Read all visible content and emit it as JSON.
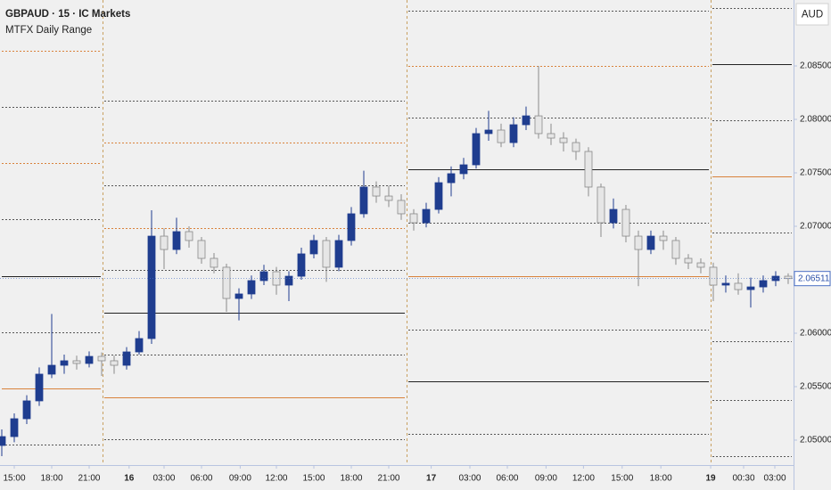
{
  "chart_data": {
    "type": "candlestick",
    "title": "GBPAUD · 15 · IC Markets",
    "subtitle": "MTFX Daily Range",
    "currency": "AUD",
    "xlim": [
      -1.143,
      62.43
    ],
    "ylim": [
      2.047667,
      2.091167
    ],
    "yticks": [
      {
        "value": 2.085,
        "label": "2.08500"
      },
      {
        "value": 2.08,
        "label": "2.08000"
      },
      {
        "value": 2.075,
        "label": "2.07500"
      },
      {
        "value": 2.07,
        "label": "2.07000"
      },
      {
        "value": 2.06,
        "label": "2.06000"
      },
      {
        "value": 2.055,
        "label": "2.05500"
      },
      {
        "value": 2.05,
        "label": "2.05000"
      }
    ],
    "xticks": [
      {
        "value": 0,
        "label": "15:00"
      },
      {
        "value": 3,
        "label": "18:00"
      },
      {
        "value": 6,
        "label": "21:00"
      },
      {
        "value": 9.2,
        "label": "16"
      },
      {
        "value": 12,
        "label": "03:00"
      },
      {
        "value": 15,
        "label": "06:00"
      },
      {
        "value": 18.1,
        "label": "09:00"
      },
      {
        "value": 21,
        "label": "12:00"
      },
      {
        "value": 24,
        "label": "15:00"
      },
      {
        "value": 27,
        "label": "18:00"
      },
      {
        "value": 30,
        "label": "21:00"
      },
      {
        "value": 33.4,
        "label": "17"
      },
      {
        "value": 36.5,
        "label": "03:00"
      },
      {
        "value": 39.5,
        "label": "06:00"
      },
      {
        "value": 42.6,
        "label": "09:00"
      },
      {
        "value": 45.6,
        "label": "12:00"
      },
      {
        "value": 48.7,
        "label": "15:00"
      },
      {
        "value": 51.8,
        "label": "18:00"
      },
      {
        "value": 55.79,
        "label": "19"
      },
      {
        "value": 58.43,
        "label": "00:30"
      },
      {
        "value": 60.93,
        "label": "03:00"
      }
    ],
    "bold_xticks": [
      "16",
      "17",
      "19"
    ],
    "separators": [
      7.07,
      31.43,
      55.79
    ],
    "up_color": "#1f3d8f",
    "down_color": "#e6e6e6",
    "x": [
      -1,
      0,
      1,
      2,
      3,
      4,
      5,
      6,
      7,
      8,
      9,
      10,
      11,
      12,
      13,
      14,
      15,
      16,
      17,
      18,
      19,
      20,
      21,
      22,
      23,
      24,
      25,
      26,
      27,
      28,
      29,
      30,
      31,
      32,
      33,
      34,
      35,
      36,
      37,
      38,
      39,
      40,
      41,
      42,
      43,
      44,
      45,
      46,
      47,
      48,
      49,
      50,
      51,
      52,
      53,
      54,
      55,
      56,
      57,
      58,
      59,
      60,
      61,
      62
    ],
    "open": [
      2.0495,
      2.05033,
      2.052,
      2.05367,
      2.05617,
      2.057,
      2.05742,
      2.05717,
      2.05783,
      2.05742,
      2.057,
      2.05825,
      2.0595,
      2.06908,
      2.06783,
      2.0695,
      2.06867,
      2.067,
      2.06617,
      2.06325,
      2.06367,
      2.06492,
      2.06575,
      2.0645,
      2.06533,
      2.06742,
      2.06867,
      2.06617,
      2.06867,
      2.07117,
      2.07367,
      2.07283,
      2.07242,
      2.07117,
      2.07033,
      2.07158,
      2.07408,
      2.07492,
      2.07575,
      2.07867,
      2.079,
      2.07783,
      2.0795,
      2.08033,
      2.07867,
      2.07825,
      2.07783,
      2.077,
      2.07367,
      2.07033,
      2.07158,
      2.06908,
      2.06783,
      2.06908,
      2.06867,
      2.067,
      2.06658,
      2.06617,
      2.0645,
      2.06467,
      2.06408,
      2.06433,
      2.06492,
      2.06533
    ],
    "high": [
      2.051,
      2.0525,
      2.0542,
      2.0568,
      2.0618,
      2.058,
      2.0579,
      2.0583,
      2.0582,
      2.0579,
      2.0587,
      2.0602,
      2.0715,
      2.0698,
      2.0708,
      2.07,
      2.069,
      2.0675,
      2.0665,
      2.0642,
      2.0654,
      2.0664,
      2.0662,
      2.0658,
      2.068,
      2.0692,
      2.069,
      2.0692,
      2.0718,
      2.0752,
      2.0742,
      2.0738,
      2.073,
      2.0716,
      2.0722,
      2.0746,
      2.0756,
      2.0764,
      2.0792,
      2.0808,
      2.0796,
      2.0802,
      2.0812,
      2.085,
      2.0796,
      2.0788,
      2.0782,
      2.0774,
      2.074,
      2.0726,
      2.072,
      2.0696,
      2.0696,
      2.0696,
      2.069,
      2.0674,
      2.067,
      2.0666,
      2.0654,
      2.0656,
      2.0652,
      2.0654,
      2.0658,
      2.0656
    ],
    "low": [
      2.0485,
      2.0498,
      2.0515,
      2.0532,
      2.0558,
      2.0562,
      2.0566,
      2.0568,
      2.056,
      2.0562,
      2.0566,
      2.058,
      2.059,
      2.066,
      2.0674,
      2.068,
      2.0665,
      2.0656,
      2.062,
      2.0612,
      2.0632,
      2.0645,
      2.0636,
      2.063,
      2.065,
      2.067,
      2.0648,
      2.0658,
      2.0682,
      2.0708,
      2.0722,
      2.0718,
      2.0706,
      2.0696,
      2.0699,
      2.0712,
      2.0728,
      2.0744,
      2.0754,
      2.078,
      2.0774,
      2.0774,
      2.079,
      2.0782,
      2.0776,
      2.077,
      2.0762,
      2.0728,
      2.069,
      2.0698,
      2.0685,
      2.0644,
      2.0674,
      2.0678,
      2.0664,
      2.066,
      2.0656,
      2.063,
      2.0638,
      2.0636,
      2.0624,
      2.0638,
      2.0644,
      2.0646
    ],
    "close": [
      2.05033,
      2.052,
      2.05367,
      2.05617,
      2.057,
      2.05742,
      2.05717,
      2.05783,
      2.05742,
      2.057,
      2.05825,
      2.0595,
      2.06908,
      2.06783,
      2.0695,
      2.06867,
      2.067,
      2.06617,
      2.06325,
      2.06367,
      2.06492,
      2.06575,
      2.0645,
      2.06533,
      2.06742,
      2.06867,
      2.06617,
      2.06867,
      2.07117,
      2.07367,
      2.07283,
      2.07242,
      2.07117,
      2.07033,
      2.07158,
      2.07408,
      2.07492,
      2.07575,
      2.07867,
      2.079,
      2.07783,
      2.0795,
      2.08033,
      2.07867,
      2.07825,
      2.07783,
      2.077,
      2.07367,
      2.07033,
      2.07158,
      2.06908,
      2.06783,
      2.06908,
      2.06867,
      2.067,
      2.06658,
      2.06617,
      2.0645,
      2.06467,
      2.06408,
      2.06433,
      2.06492,
      2.06533,
      2.06511
    ],
    "levels": [
      {
        "from": -1.143,
        "to": 7.07,
        "prices": [
          2.08642,
          2.08117,
          2.07592,
          2.07067,
          2.06533,
          2.06008,
          2.05483,
          2.04958
        ],
        "colors": [
          "#d9823b",
          "#555555",
          "#d9823b",
          "#555555",
          "#222222",
          "#555555",
          "#d9823b",
          "#555555"
        ],
        "dashed": [
          true,
          true,
          true,
          true,
          false,
          true,
          false,
          true
        ]
      },
      {
        "from": 7.07,
        "to": 31.43,
        "prices": [
          2.08175,
          2.07783,
          2.07383,
          2.06983,
          2.06592,
          2.06192,
          2.058,
          2.054,
          2.05008
        ],
        "colors": [
          "#555555",
          "#d9823b",
          "#555555",
          "#d9823b",
          "#555555",
          "#222222",
          "#555555",
          "#d9823b",
          "#555555"
        ],
        "dashed": [
          true,
          true,
          true,
          true,
          true,
          false,
          true,
          false,
          true
        ]
      },
      {
        "from": 31.43,
        "to": 55.79,
        "prices": [
          2.09017,
          2.085,
          2.08017,
          2.07533,
          2.07033,
          2.06533,
          2.06033,
          2.0555,
          2.05058
        ],
        "colors": [
          "#555555",
          "#d9823b",
          "#555555",
          "#222222",
          "#555555",
          "#d9823b",
          "#555555",
          "#222222",
          "#555555"
        ],
        "dashed": [
          true,
          true,
          true,
          false,
          true,
          false,
          true,
          false,
          true
        ]
      },
      {
        "from": 55.79,
        "to": 62.43,
        "prices": [
          2.09042,
          2.08517,
          2.07992,
          2.07467,
          2.06942,
          2.05925,
          2.05375,
          2.0485
        ],
        "colors": [
          "#555555",
          "#222222",
          "#555555",
          "#d9823b",
          "#555555",
          "#555555",
          "#555555",
          "#555555"
        ],
        "dashed": [
          true,
          false,
          true,
          false,
          true,
          true,
          true,
          true
        ]
      }
    ]
  }
}
